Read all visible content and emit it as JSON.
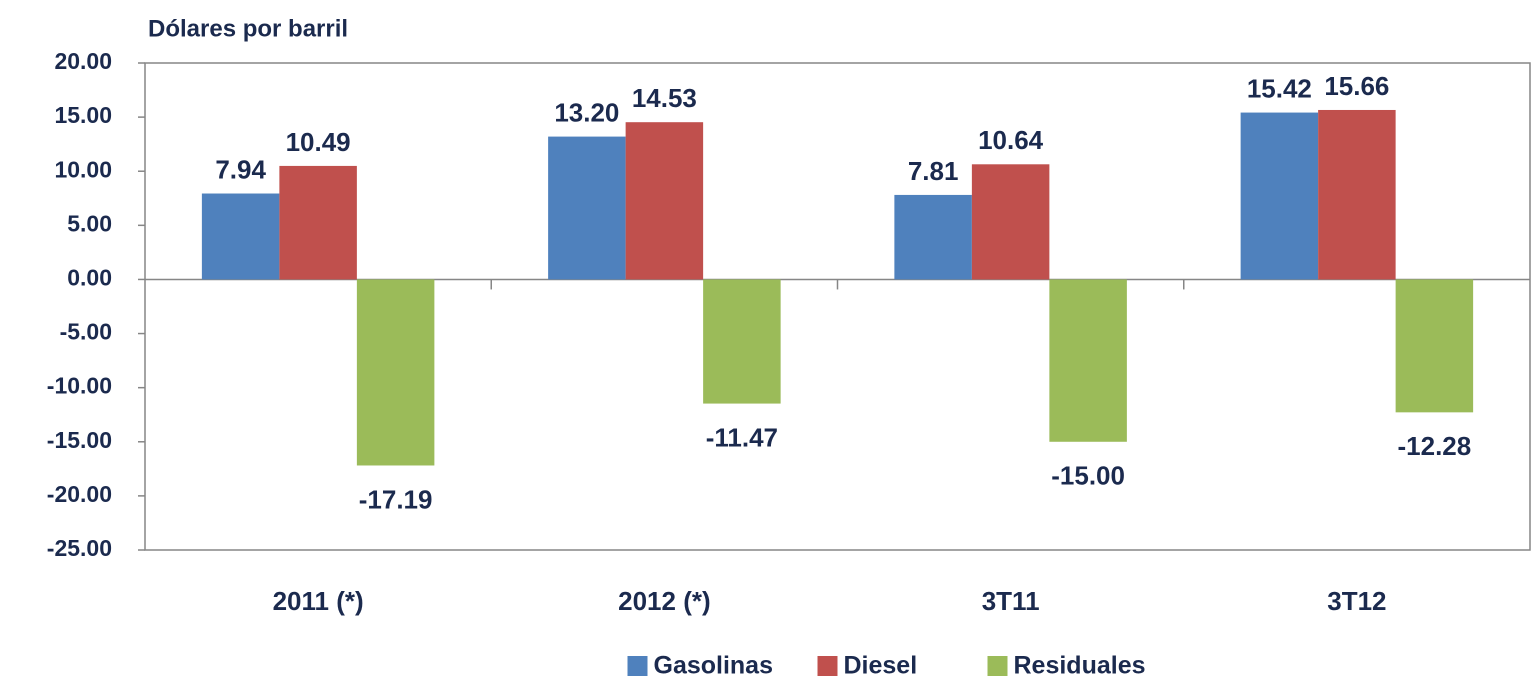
{
  "chart_data": {
    "type": "bar",
    "y_axis_title": "Dólares por barril",
    "categories": [
      "2011 (*)",
      "2012 (*)",
      "3T11",
      "3T12"
    ],
    "series": [
      {
        "name": "Gasolinas",
        "color": "#4f81bd",
        "values": [
          7.94,
          13.2,
          7.81,
          15.42
        ],
        "value_labels": [
          "7.94",
          "13.20",
          "7.81",
          "15.42"
        ]
      },
      {
        "name": "Diesel",
        "color": "#c0504d",
        "values": [
          10.49,
          14.53,
          10.64,
          15.66
        ],
        "value_labels": [
          "10.49",
          "14.53",
          "10.64",
          "15.66"
        ]
      },
      {
        "name": "Residuales",
        "color": "#9bbb59",
        "values": [
          -17.19,
          -11.47,
          -15,
          -12.28
        ],
        "value_labels": [
          "-17.19",
          "-11.47",
          "-15.00",
          "-12.28"
        ]
      }
    ],
    "ylim": [
      -25,
      20
    ],
    "yticks": [
      {
        "value": -25,
        "label": "-25.00"
      },
      {
        "value": -20,
        "label": "-20.00"
      },
      {
        "value": -15,
        "label": "-15.00"
      },
      {
        "value": -10,
        "label": "-10.00"
      },
      {
        "value": -5,
        "label": "-5.00"
      },
      {
        "value": 0,
        "label": "0.00"
      },
      {
        "value": 5,
        "label": "5.00"
      },
      {
        "value": 10,
        "label": "10.00"
      },
      {
        "value": 15,
        "label": "15.00"
      },
      {
        "value": 20,
        "label": "20.00"
      }
    ],
    "grid": false,
    "legend": "bottom"
  }
}
